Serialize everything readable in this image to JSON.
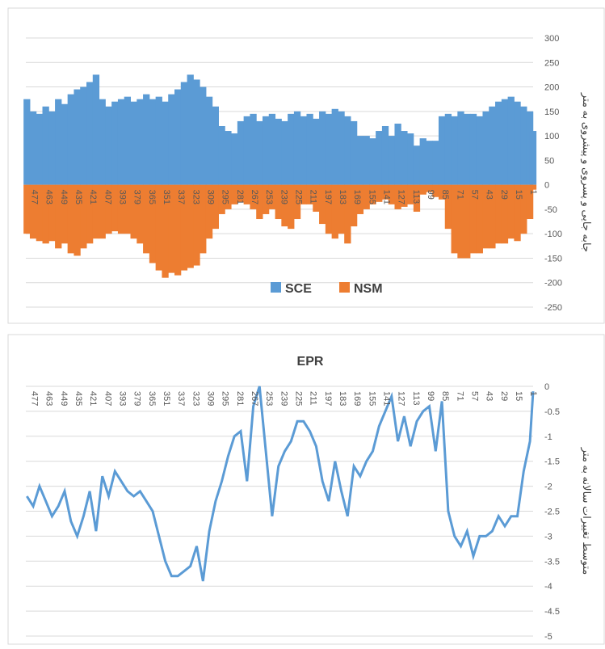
{
  "chart_data": [
    {
      "type": "bar",
      "y_label": "جابه جایی و پسروی و پیشروی به متر",
      "x": [
        484,
        478,
        472,
        466,
        460,
        454,
        448,
        442,
        436,
        430,
        424,
        418,
        412,
        406,
        400,
        394,
        388,
        382,
        376,
        370,
        364,
        358,
        352,
        346,
        340,
        334,
        328,
        322,
        316,
        310,
        304,
        298,
        292,
        286,
        280,
        274,
        268,
        262,
        256,
        250,
        244,
        238,
        232,
        226,
        220,
        214,
        208,
        202,
        196,
        190,
        184,
        178,
        172,
        166,
        160,
        154,
        148,
        142,
        136,
        130,
        124,
        118,
        112,
        106,
        100,
        94,
        88,
        82,
        76,
        70,
        64,
        58,
        52,
        46,
        40,
        34,
        28,
        22,
        16,
        10,
        4,
        1
      ],
      "series": [
        {
          "name": "SCE",
          "color": "#5b9bd5",
          "values": [
            175,
            150,
            145,
            160,
            150,
            175,
            165,
            185,
            195,
            200,
            210,
            225,
            175,
            160,
            170,
            175,
            180,
            170,
            175,
            185,
            175,
            180,
            170,
            185,
            195,
            210,
            225,
            215,
            200,
            180,
            160,
            120,
            110,
            105,
            130,
            140,
            145,
            130,
            140,
            145,
            135,
            130,
            145,
            150,
            140,
            145,
            135,
            150,
            145,
            155,
            150,
            140,
            130,
            100,
            100,
            95,
            110,
            120,
            100,
            125,
            110,
            105,
            80,
            95,
            90,
            90,
            140,
            145,
            140,
            150,
            145,
            145,
            140,
            150,
            160,
            170,
            175,
            180,
            170,
            160,
            150,
            110
          ]
        },
        {
          "name": "NSM",
          "color": "#ed7d31",
          "values": [
            -100,
            -110,
            -115,
            -120,
            -115,
            -130,
            -120,
            -140,
            -145,
            -130,
            -120,
            -110,
            -110,
            -100,
            -95,
            -100,
            -100,
            -110,
            -120,
            -140,
            -160,
            -175,
            -190,
            -180,
            -185,
            -175,
            -170,
            -165,
            -140,
            -110,
            -90,
            -60,
            -50,
            -40,
            -35,
            -40,
            -50,
            -70,
            -60,
            -50,
            -70,
            -85,
            -90,
            -70,
            -40,
            -40,
            -55,
            -80,
            -100,
            -110,
            -100,
            -120,
            -85,
            -60,
            -50,
            -40,
            -35,
            -30,
            -40,
            -50,
            -45,
            -40,
            -55,
            -20,
            -15,
            -25,
            -30,
            -90,
            -140,
            -150,
            -150,
            -140,
            -140,
            -130,
            -130,
            -120,
            -120,
            -110,
            -115,
            -100,
            -70,
            -10
          ]
        }
      ],
      "xlim": [
        485,
        1
      ],
      "xticks": [
        477,
        463,
        449,
        435,
        421,
        407,
        393,
        379,
        365,
        351,
        337,
        323,
        309,
        295,
        281,
        267,
        253,
        239,
        225,
        211,
        197,
        183,
        169,
        155,
        141,
        127,
        113,
        99,
        85,
        71,
        57,
        43,
        29,
        15,
        1
      ],
      "ylim": [
        -250,
        300
      ],
      "yticks": [
        300,
        250,
        200,
        150,
        100,
        50,
        0,
        -50,
        -100,
        -150,
        -200,
        -250
      ],
      "grid": true
    },
    {
      "type": "line",
      "title": "EPR",
      "y_label": "متوسط تغییرات سالانه به متر",
      "x": [
        484,
        478,
        472,
        466,
        460,
        454,
        448,
        442,
        436,
        430,
        424,
        418,
        412,
        406,
        400,
        394,
        388,
        382,
        376,
        370,
        364,
        358,
        352,
        346,
        340,
        334,
        328,
        322,
        316,
        310,
        304,
        298,
        292,
        286,
        280,
        274,
        268,
        262,
        256,
        250,
        244,
        238,
        232,
        226,
        220,
        214,
        208,
        202,
        196,
        190,
        184,
        178,
        172,
        166,
        160,
        154,
        148,
        142,
        136,
        130,
        124,
        118,
        112,
        106,
        100,
        94,
        88,
        82,
        76,
        70,
        64,
        58,
        52,
        46,
        40,
        34,
        28,
        22,
        16,
        10,
        4,
        1
      ],
      "series": [
        {
          "name": "EPR",
          "color": "#5b9bd5",
          "values": [
            -2.2,
            -2.4,
            -2.0,
            -2.3,
            -2.6,
            -2.4,
            -2.1,
            -2.7,
            -3.0,
            -2.6,
            -2.1,
            -2.9,
            -1.8,
            -2.2,
            -1.7,
            -1.9,
            -2.1,
            -2.2,
            -2.1,
            -2.3,
            -2.5,
            -3.0,
            -3.5,
            -3.8,
            -3.8,
            -3.7,
            -3.6,
            -3.2,
            -3.9,
            -2.9,
            -2.3,
            -1.9,
            -1.4,
            -1.0,
            -0.9,
            -1.9,
            -0.4,
            0,
            -1.3,
            -2.6,
            -1.6,
            -1.3,
            -1.1,
            -0.7,
            -0.7,
            -0.9,
            -1.2,
            -1.9,
            -2.3,
            -1.5,
            -2.1,
            -2.6,
            -1.6,
            -1.8,
            -1.5,
            -1.3,
            -0.8,
            -0.5,
            -0.2,
            -1.1,
            -0.6,
            -1.2,
            -0.7,
            -0.5,
            -0.4,
            -1.3,
            -0.3,
            -2.5,
            -3.0,
            -3.2,
            -2.9,
            -3.4,
            -3.0,
            -3.0,
            -2.9,
            -2.6,
            -2.8,
            -2.6,
            -2.6,
            -1.7,
            -1.1,
            -0.1
          ]
        }
      ],
      "xlim": [
        485,
        1
      ],
      "xticks": [
        477,
        463,
        449,
        435,
        421,
        407,
        393,
        379,
        365,
        351,
        337,
        323,
        309,
        295,
        281,
        267,
        253,
        239,
        225,
        211,
        197,
        183,
        169,
        155,
        141,
        127,
        113,
        99,
        85,
        71,
        57,
        43,
        29,
        15,
        1
      ],
      "ylim": [
        -5,
        0
      ],
      "yticks": [
        0,
        -0.5,
        -1,
        -1.5,
        -2,
        -2.5,
        -3,
        -3.5,
        -4,
        -4.5,
        -5
      ],
      "grid": true
    }
  ]
}
